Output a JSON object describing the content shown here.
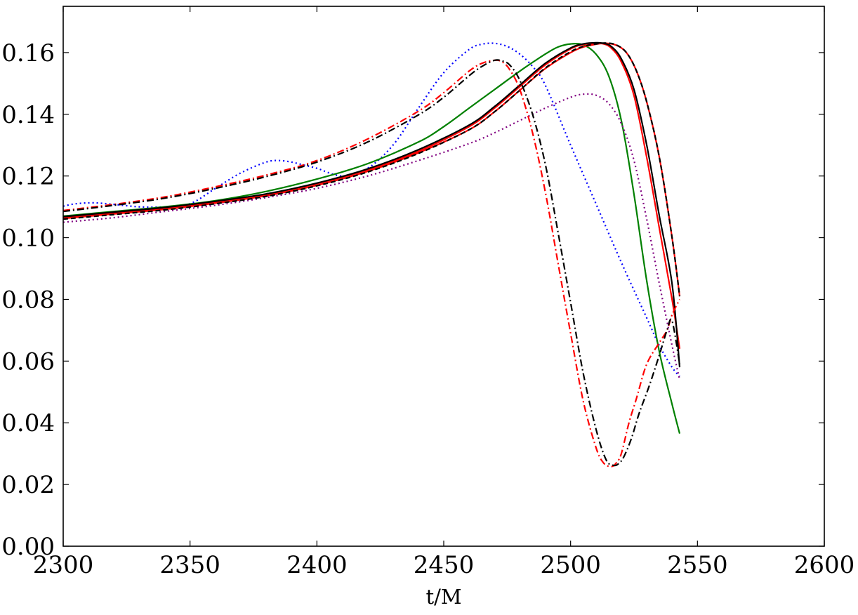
{
  "chart_data": {
    "type": "line",
    "title": "",
    "xlabel": "t/M",
    "ylabel": "",
    "xlim": [
      2300,
      2600
    ],
    "ylim": [
      0.0,
      0.175
    ],
    "xticks": [
      2300,
      2350,
      2400,
      2450,
      2500,
      2550,
      2600
    ],
    "xtick_labels": [
      "2300",
      "2350",
      "2400",
      "2450",
      "2500",
      "2550",
      "2600"
    ],
    "yticks": [
      0.0,
      0.02,
      0.04,
      0.06,
      0.08,
      0.1,
      0.12,
      0.14,
      0.16
    ],
    "ytick_labels": [
      "0.00",
      "0.02",
      "0.04",
      "0.06",
      "0.08",
      "0.10",
      "0.12",
      "0.14",
      "0.16"
    ],
    "grid": false,
    "legend": "none",
    "series": [
      {
        "color": "#0000ff",
        "style": "dotted",
        "x": [
          2300,
          2305,
          2312,
          2320,
          2330,
          2340,
          2350,
          2360,
          2370,
          2380,
          2385,
          2390,
          2395,
          2400,
          2410,
          2420,
          2430,
          2440,
          2450,
          2460,
          2465,
          2470,
          2475,
          2480,
          2485,
          2490,
          2500,
          2510,
          2520,
          2530,
          2535,
          2540,
          2543
        ],
        "y": [
          0.1102,
          0.111,
          0.1113,
          0.1108,
          0.11,
          0.11,
          0.111,
          0.116,
          0.121,
          0.1245,
          0.125,
          0.1245,
          0.1235,
          0.1225,
          0.12,
          0.1225,
          0.13,
          0.142,
          0.1535,
          0.161,
          0.1627,
          0.163,
          0.162,
          0.1595,
          0.1555,
          0.1495,
          0.13,
          0.111,
          0.092,
          0.074,
          0.065,
          0.058,
          0.055
        ]
      },
      {
        "color": "#008000",
        "style": "solid",
        "x": [
          2300,
          2320,
          2340,
          2360,
          2380,
          2400,
          2420,
          2440,
          2450,
          2460,
          2470,
          2480,
          2490,
          2495,
          2500,
          2505,
          2510,
          2515,
          2520,
          2525,
          2530,
          2535,
          2540,
          2543
        ],
        "y": [
          0.107,
          0.1085,
          0.11,
          0.112,
          0.115,
          0.119,
          0.124,
          0.131,
          0.136,
          0.142,
          0.148,
          0.154,
          0.1595,
          0.1618,
          0.1628,
          0.1625,
          0.1595,
          0.1525,
          0.138,
          0.114,
          0.086,
          0.063,
          0.046,
          0.0365
        ]
      },
      {
        "color": "#800080",
        "style": "dotted",
        "x": [
          2300,
          2320,
          2340,
          2360,
          2380,
          2400,
          2420,
          2440,
          2460,
          2470,
          2480,
          2490,
          2500,
          2505,
          2510,
          2515,
          2520,
          2525,
          2530,
          2535,
          2540,
          2543
        ],
        "y": [
          0.105,
          0.1065,
          0.1085,
          0.1105,
          0.113,
          0.116,
          0.12,
          0.125,
          0.1305,
          0.134,
          0.138,
          0.142,
          0.1455,
          0.1465,
          0.1462,
          0.1435,
          0.137,
          0.125,
          0.106,
          0.085,
          0.065,
          0.054
        ]
      },
      {
        "color": "#ff0000",
        "style": "solid",
        "x": [
          2300,
          2320,
          2340,
          2360,
          2380,
          2400,
          2420,
          2440,
          2460,
          2470,
          2480,
          2490,
          2500,
          2505,
          2510,
          2513,
          2516,
          2520,
          2525,
          2530,
          2535,
          2540,
          2543
        ],
        "y": [
          0.1065,
          0.108,
          0.1095,
          0.1115,
          0.114,
          0.1175,
          0.122,
          0.128,
          0.136,
          0.142,
          0.149,
          0.156,
          0.1612,
          0.1626,
          0.163,
          0.1628,
          0.1615,
          0.157,
          0.146,
          0.126,
          0.103,
          0.08,
          0.064
        ]
      },
      {
        "color": "#ff0000",
        "style": "solid",
        "x": [
          2300,
          2320,
          2340,
          2360,
          2380,
          2400,
          2420,
          2440,
          2460,
          2470,
          2480,
          2490,
          2500,
          2505,
          2510,
          2514,
          2518,
          2522,
          2526,
          2530,
          2535,
          2540,
          2543
        ],
        "y": [
          0.1062,
          0.1077,
          0.1092,
          0.1112,
          0.1136,
          0.117,
          0.1215,
          0.1275,
          0.135,
          0.1408,
          0.1478,
          0.1548,
          0.16,
          0.1618,
          0.1627,
          0.163,
          0.1624,
          0.16,
          0.154,
          0.144,
          0.126,
          0.1,
          0.081
        ]
      },
      {
        "color": "#000000",
        "style": "solid",
        "x": [
          2300,
          2320,
          2340,
          2360,
          2380,
          2400,
          2420,
          2440,
          2460,
          2470,
          2480,
          2490,
          2500,
          2505,
          2510,
          2513,
          2516,
          2520,
          2525,
          2530,
          2535,
          2540,
          2543
        ],
        "y": [
          0.1068,
          0.1083,
          0.1098,
          0.1118,
          0.1142,
          0.1177,
          0.1223,
          0.1285,
          0.1365,
          0.1425,
          0.1495,
          0.1565,
          0.1615,
          0.1628,
          0.1632,
          0.163,
          0.162,
          0.158,
          0.148,
          0.13,
          0.107,
          0.085,
          0.058
        ]
      },
      {
        "color": "#000000",
        "style": "dashed",
        "x": [
          2300,
          2320,
          2340,
          2360,
          2380,
          2400,
          2420,
          2440,
          2460,
          2470,
          2480,
          2490,
          2500,
          2505,
          2510,
          2514,
          2518,
          2522,
          2526,
          2530,
          2535,
          2540,
          2543
        ],
        "y": [
          0.106,
          0.1075,
          0.109,
          0.111,
          0.1134,
          0.1168,
          0.1213,
          0.1273,
          0.135,
          0.1408,
          0.1478,
          0.155,
          0.1603,
          0.162,
          0.1628,
          0.1631,
          0.1625,
          0.16,
          0.154,
          0.144,
          0.126,
          0.1,
          0.081
        ]
      },
      {
        "color": "#ff0000",
        "style": "dashdot",
        "x": [
          2300,
          2320,
          2340,
          2360,
          2380,
          2400,
          2420,
          2440,
          2450,
          2460,
          2465,
          2470,
          2473,
          2476,
          2480,
          2485,
          2490,
          2495,
          2500,
          2505,
          2510,
          2513,
          2516,
          2518,
          2520,
          2523,
          2526,
          2530,
          2535,
          2538,
          2540,
          2543
        ],
        "y": [
          0.1088,
          0.1108,
          0.1132,
          0.1165,
          0.1203,
          0.125,
          0.132,
          0.141,
          0.147,
          0.154,
          0.1565,
          0.1575,
          0.157,
          0.1545,
          0.148,
          0.134,
          0.115,
          0.092,
          0.069,
          0.047,
          0.032,
          0.027,
          0.0258,
          0.027,
          0.03,
          0.04,
          0.048,
          0.059,
          0.066,
          0.07,
          0.075,
          0.08
        ]
      },
      {
        "color": "#000000",
        "style": "dashdot",
        "x": [
          2300,
          2320,
          2340,
          2360,
          2380,
          2400,
          2420,
          2440,
          2450,
          2460,
          2465,
          2470,
          2473,
          2476,
          2480,
          2485,
          2490,
          2495,
          2500,
          2505,
          2510,
          2514,
          2517,
          2519,
          2521,
          2524,
          2527,
          2531,
          2535,
          2538,
          2540,
          2543
        ],
        "y": [
          0.1085,
          0.1105,
          0.1128,
          0.116,
          0.1198,
          0.1245,
          0.131,
          0.1398,
          0.1455,
          0.1525,
          0.1555,
          0.1575,
          0.1573,
          0.156,
          0.151,
          0.14,
          0.124,
          0.102,
          0.079,
          0.056,
          0.038,
          0.028,
          0.0262,
          0.0268,
          0.029,
          0.035,
          0.043,
          0.052,
          0.062,
          0.07,
          0.073,
          0.059
        ]
      }
    ]
  }
}
